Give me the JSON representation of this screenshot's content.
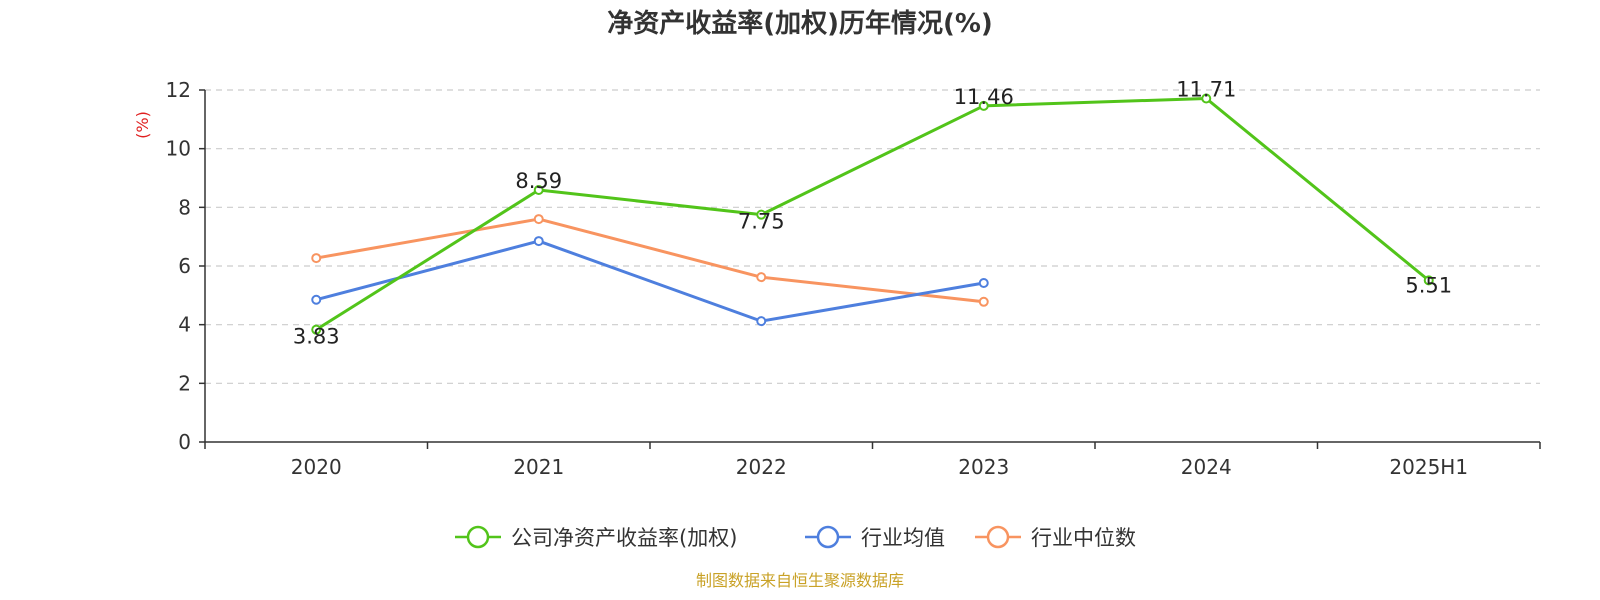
{
  "chart_data": {
    "type": "line",
    "title": "净资产收益率(加权)历年情况(%)",
    "ylabel": "(%)",
    "categories": [
      "2020",
      "2021",
      "2022",
      "2023",
      "2024",
      "2025H1"
    ],
    "ylim": [
      0,
      12
    ],
    "yticks": [
      0,
      2,
      4,
      6,
      8,
      10,
      12
    ],
    "grid": true,
    "legend_position": "bottom",
    "series": [
      {
        "name": "公司净资产收益率(加权)",
        "color": "#52c41a",
        "values": [
          3.83,
          8.59,
          7.75,
          11.46,
          11.71,
          5.51
        ],
        "labels": [
          "3.83",
          "8.59",
          "7.75",
          "11.46",
          "11.71",
          "5.51"
        ]
      },
      {
        "name": "行业均值",
        "color": "#4e7fde",
        "values": [
          4.85,
          6.85,
          4.12,
          5.42,
          null,
          null
        ]
      },
      {
        "name": "行业中位数",
        "color": "#f89460",
        "values": [
          6.27,
          7.6,
          5.62,
          4.78,
          null,
          null
        ]
      }
    ]
  },
  "footer": {
    "source": "制图数据来自恒生聚源数据库",
    "color": "#c9a227"
  },
  "ylabel_color": "#e02020"
}
